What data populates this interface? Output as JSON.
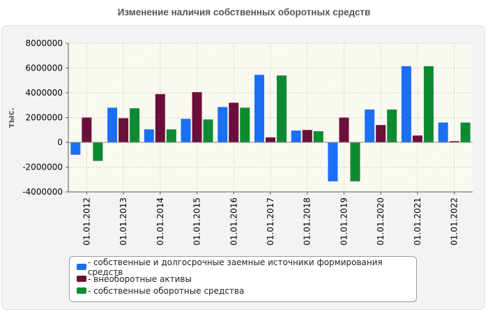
{
  "title": "Изменение наличия собственных оборотных средств",
  "chart_data": {
    "type": "bar",
    "title": "Изменение наличия собственных оборотных средств",
    "xlabel": "",
    "ylabel": "тыс.",
    "ylim": [
      -4000000,
      8000000
    ],
    "yticks": [
      8000000,
      6000000,
      4000000,
      2000000,
      0,
      -2000000,
      -4000000
    ],
    "grid": true,
    "legend_position": "bottom",
    "categories": [
      "01.01.2012",
      "01.01.2013",
      "01.01.2014",
      "01.01.2015",
      "01.01.2016",
      "01.01.2017",
      "01.01.2018",
      "01.01.2019",
      "01.01.2020",
      "01.01.2021",
      "01.01.2022"
    ],
    "series": [
      {
        "name": "- собственные и долгосрочные заемные источники формирования средств",
        "color": "#1a6ff5",
        "values": [
          -1000000,
          2800000,
          1050000,
          1900000,
          2850000,
          5450000,
          950000,
          -3150000,
          2650000,
          6150000,
          1600000
        ]
      },
      {
        "name": "- внеоборотные активы",
        "color": "#6b0f3a",
        "values": [
          2000000,
          1950000,
          3900000,
          4050000,
          3200000,
          400000,
          1000000,
          2000000,
          1400000,
          550000,
          100000
        ]
      },
      {
        "name": "- собственные оборотные средства",
        "color": "#0e8a32",
        "values": [
          -1500000,
          2750000,
          1050000,
          1850000,
          2800000,
          5400000,
          900000,
          -3150000,
          2650000,
          6150000,
          1600000
        ]
      }
    ]
  }
}
